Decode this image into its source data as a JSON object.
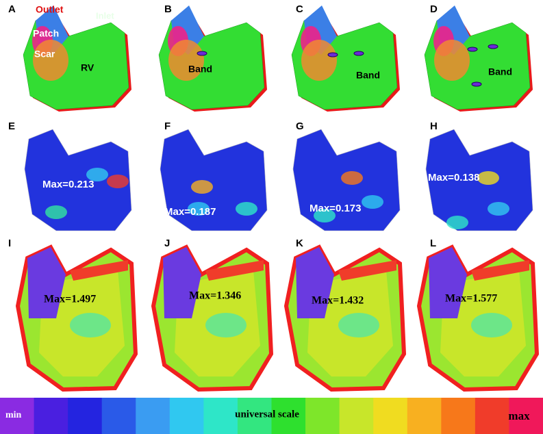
{
  "row1": {
    "panels": [
      {
        "letter": "A",
        "labels": [
          "Outlet",
          "Inlet",
          "Patch",
          "Scar",
          "RV"
        ]
      },
      {
        "letter": "B",
        "labels": [
          "Band"
        ]
      },
      {
        "letter": "C",
        "labels": [
          "Band"
        ]
      },
      {
        "letter": "D",
        "labels": [
          "Band"
        ]
      }
    ]
  },
  "row2": {
    "panels": [
      {
        "letter": "E",
        "max": "Max=0.213"
      },
      {
        "letter": "F",
        "max": "Max=0.187"
      },
      {
        "letter": "G",
        "max": "Max=0.173"
      },
      {
        "letter": "H",
        "max": "Max=0.138"
      }
    ]
  },
  "row3": {
    "panels": [
      {
        "letter": "I",
        "max": "Max=1.497"
      },
      {
        "letter": "J",
        "max": "Max=1.346"
      },
      {
        "letter": "K",
        "max": "Max=1.432"
      },
      {
        "letter": "L",
        "max": "Max=1.577"
      }
    ]
  },
  "colorbar": {
    "min": "min",
    "title": "universal scale",
    "max": "max",
    "colors": [
      "#8a2be2",
      "#4a1fe0",
      "#2424e0",
      "#2a5ae8",
      "#3a9cf2",
      "#30c8f0",
      "#2ee6c8",
      "#33e680",
      "#2ee02e",
      "#7ee62a",
      "#c8e62a",
      "#f0dc20",
      "#f8b020",
      "#f7781a",
      "#f03c2a",
      "#f0185a"
    ]
  }
}
